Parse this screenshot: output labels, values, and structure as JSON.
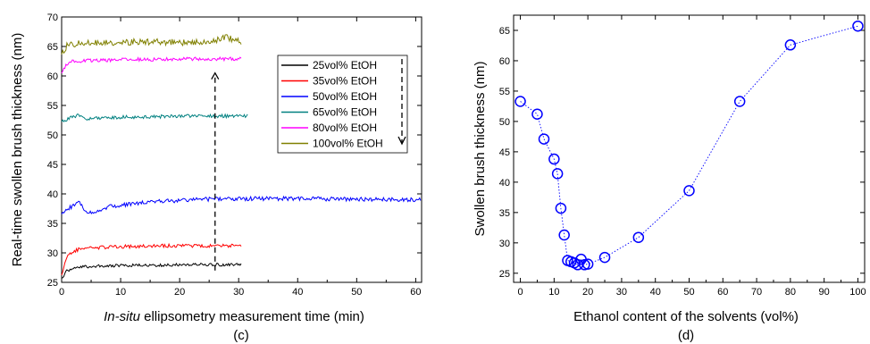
{
  "chart_data": [
    {
      "type": "line",
      "panel_label": "(c)",
      "xlabel_italic": "In-situ",
      "xlabel_rest": " ellipsometry measurement  time (min)",
      "ylabel": "Real-time swollen brush thickness (nm)",
      "xlim": [
        0,
        61
      ],
      "ylim": [
        25,
        70
      ],
      "xticks": [
        0,
        10,
        20,
        30,
        40,
        50,
        60
      ],
      "yticks": [
        25,
        30,
        35,
        40,
        45,
        50,
        55,
        60,
        65,
        70
      ],
      "legend_position": "right-top",
      "series": [
        {
          "name": "25vol% EtOH",
          "color": "#000000",
          "x": [
            0,
            0.5,
            1,
            2,
            3,
            5,
            8,
            12,
            16,
            20,
            25,
            30.5
          ],
          "y": [
            25.5,
            26.5,
            27,
            27.4,
            27.6,
            27.7,
            27.8,
            27.9,
            27.9,
            28,
            28,
            28
          ]
        },
        {
          "name": "35vol% EtOH",
          "color": "#ff0000",
          "x": [
            0,
            0.5,
            1,
            2,
            3,
            5,
            8,
            12,
            16,
            20,
            25,
            30.5
          ],
          "y": [
            26.5,
            28,
            29.5,
            30.3,
            30.6,
            30.8,
            31,
            31.1,
            31.2,
            31.2,
            31.2,
            31.2
          ]
        },
        {
          "name": "50vol% EtOH",
          "color": "#0000ff",
          "x": [
            0,
            1,
            2,
            3,
            4,
            5,
            8,
            12,
            16,
            20,
            25,
            30,
            40,
            50,
            61
          ],
          "y": [
            36.5,
            37.5,
            38,
            38.5,
            37,
            36.8,
            37.8,
            38.3,
            38.7,
            38.9,
            39.1,
            39.2,
            39.2,
            39.1,
            39
          ]
        },
        {
          "name": "65vol% EtOH",
          "color": "#008080",
          "x": [
            0,
            1,
            2,
            3,
            4,
            6,
            10,
            15,
            20,
            25,
            31.5
          ],
          "y": [
            52.3,
            52.6,
            53.1,
            53.4,
            52.8,
            52.8,
            53,
            53.1,
            53.2,
            53.2,
            53.2
          ]
        },
        {
          "name": "80vol% EtOH",
          "color": "#ff00ff",
          "x": [
            0,
            0.5,
            1,
            2,
            4,
            8,
            12,
            16,
            20,
            25,
            30.5
          ],
          "y": [
            60.5,
            61.5,
            62.2,
            62.5,
            62.6,
            62.7,
            62.8,
            62.8,
            62.9,
            62.9,
            62.9
          ]
        },
        {
          "name": "100vol% EtOH",
          "color": "#808000",
          "x": [
            0,
            0.5,
            1,
            3,
            6,
            10,
            15,
            20,
            25,
            28,
            30.5
          ],
          "y": [
            63.5,
            64.5,
            65.2,
            65.6,
            65.7,
            65.7,
            65.8,
            65.7,
            65.8,
            66.5,
            65.8
          ]
        }
      ]
    },
    {
      "type": "scatter",
      "panel_label": "(d)",
      "xlabel": "Ethanol content of the solvents (vol%)",
      "ylabel": "Swollen brush thickness (nm)",
      "xlim": [
        -2,
        102
      ],
      "ylim": [
        23.5,
        67.5
      ],
      "xticks": [
        0,
        10,
        20,
        30,
        40,
        50,
        60,
        70,
        80,
        90,
        100
      ],
      "yticks": [
        25,
        30,
        35,
        40,
        45,
        50,
        55,
        60,
        65
      ],
      "line_style": "dotted",
      "marker": "open-circle",
      "color": "#0000ff",
      "x": [
        0,
        5,
        7,
        10,
        11,
        12,
        13,
        14,
        15,
        16,
        17,
        18,
        19,
        20,
        25,
        35,
        50,
        65,
        80,
        100
      ],
      "y": [
        53.3,
        51.2,
        47.1,
        43.8,
        41.4,
        35.7,
        31.3,
        27.1,
        26.9,
        26.7,
        26.4,
        27.3,
        26.4,
        26.5,
        27.6,
        30.9,
        38.6,
        53.3,
        62.6,
        65.7
      ]
    }
  ]
}
